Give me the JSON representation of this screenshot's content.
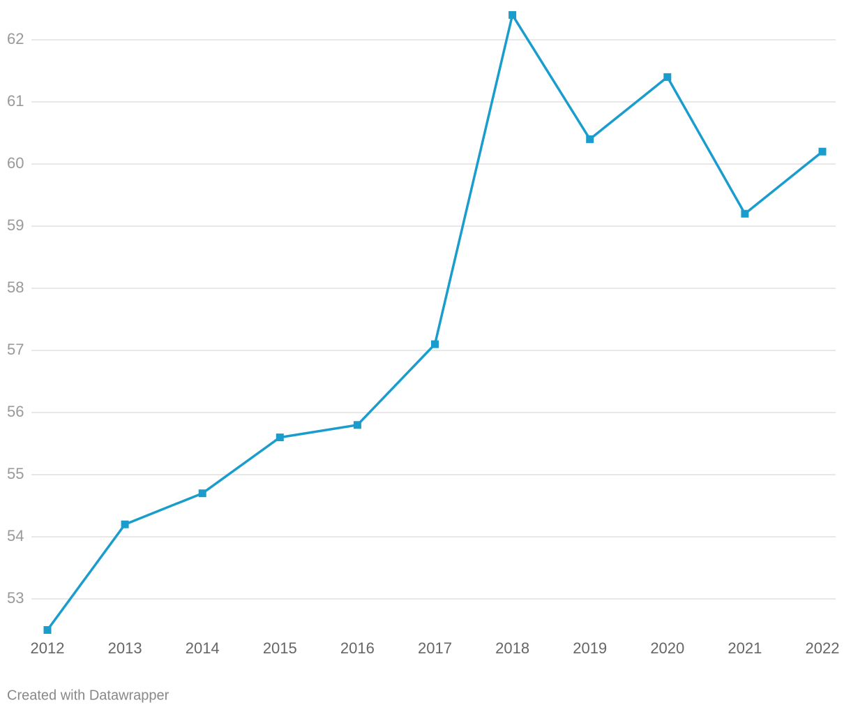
{
  "chart_data": {
    "type": "line",
    "categories": [
      "2012",
      "2013",
      "2014",
      "2015",
      "2016",
      "2017",
      "2018",
      "2019",
      "2020",
      "2021",
      "2022"
    ],
    "series": [
      {
        "color": "#1a9dcc",
        "values": [
          52.5,
          54.2,
          54.7,
          55.6,
          55.8,
          57.1,
          62.4,
          60.4,
          61.4,
          59.2,
          60.2
        ]
      }
    ],
    "ylim": [
      52.5,
      62.4
    ],
    "yticks": [
      53,
      54,
      55,
      56,
      57,
      58,
      59,
      60,
      61,
      62
    ],
    "grid": true,
    "footer": "Created with Datawrapper"
  }
}
